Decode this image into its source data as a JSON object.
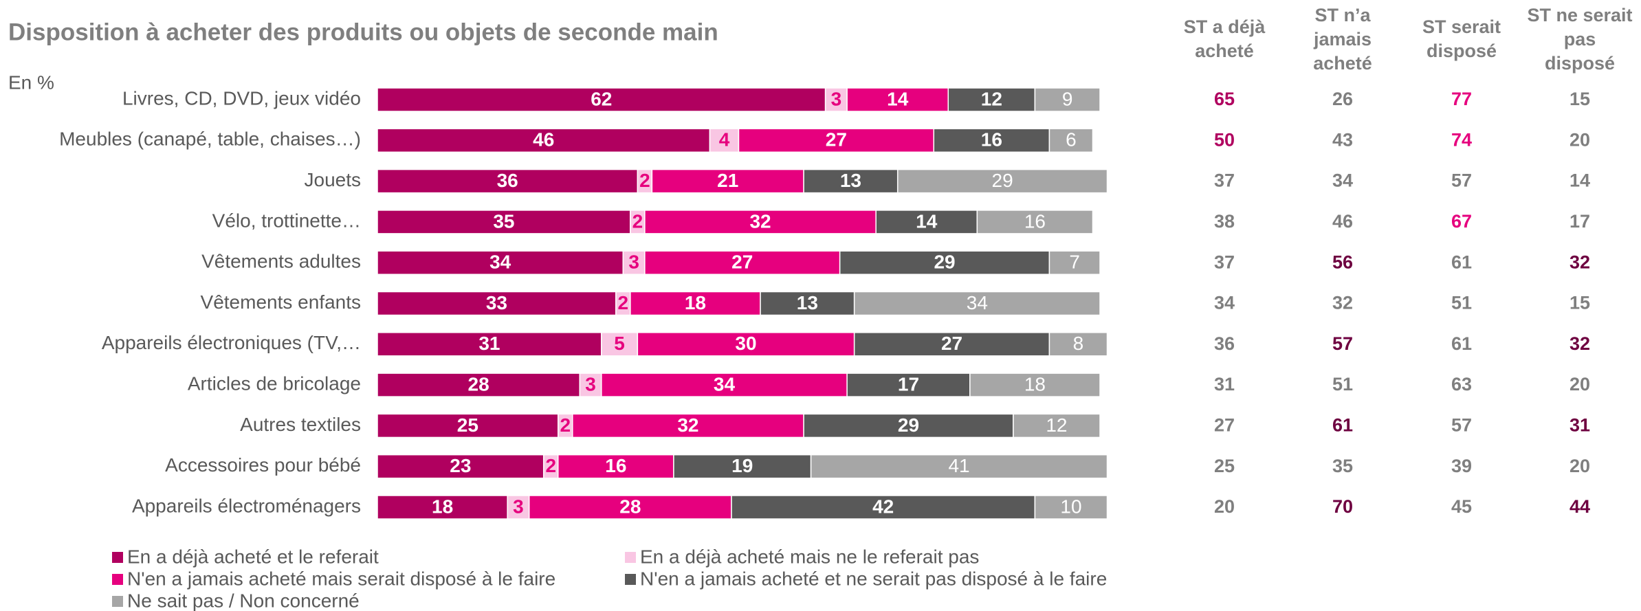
{
  "chart_data": {
    "type": "bar",
    "orientation": "horizontal",
    "stacked": true,
    "title": "Disposition à acheter des produits ou objets de seconde main",
    "unit_label": "En %",
    "xlim": [
      0,
      100
    ],
    "categories": [
      "Livres, CD, DVD, jeux vidéo",
      "Meubles (canapé, table, chaises…)",
      "Jouets",
      "Vélo, trottinette…",
      "Vêtements adultes",
      "Vêtements enfants",
      "Appareils électroniques (TV,…",
      "Articles de bricolage",
      "Autres textiles",
      "Accessoires pour bébé",
      "Appareils électroménagers"
    ],
    "series": [
      {
        "name": "En a déjà acheté et le referait",
        "color": "#b0005f",
        "label_color": "#ffffff",
        "values": [
          62,
          46,
          36,
          35,
          34,
          33,
          31,
          28,
          25,
          23,
          18
        ]
      },
      {
        "name": "En a déjà acheté mais ne le referait pas",
        "color": "#f9c6e3",
        "label_color": "#e6007e",
        "values": [
          3,
          4,
          2,
          2,
          3,
          2,
          5,
          3,
          2,
          2,
          3
        ]
      },
      {
        "name": "N'en a jamais acheté mais serait disposé à le faire",
        "color": "#e6007e",
        "label_color": "#ffffff",
        "values": [
          14,
          27,
          21,
          32,
          27,
          18,
          30,
          34,
          32,
          16,
          28
        ]
      },
      {
        "name": "N'en a jamais acheté et ne serait pas disposé à le faire",
        "color": "#595959",
        "label_color": "#ffffff",
        "values": [
          12,
          16,
          13,
          14,
          29,
          13,
          27,
          17,
          29,
          19,
          42
        ]
      },
      {
        "name": "Ne sait pas / Non concerné",
        "color": "#a6a6a6",
        "label_color": "#ffffff",
        "values": [
          9,
          6,
          29,
          16,
          7,
          34,
          8,
          18,
          12,
          41,
          10
        ]
      }
    ],
    "table": [
      {
        "header": [
          "ST a déjà",
          "acheté"
        ],
        "values": [
          65,
          50,
          37,
          38,
          37,
          34,
          36,
          31,
          27,
          25,
          20
        ],
        "colors": [
          "#b0005f",
          "#b0005f",
          "#7f7f7f",
          "#7f7f7f",
          "#7f7f7f",
          "#7f7f7f",
          "#7f7f7f",
          "#7f7f7f",
          "#7f7f7f",
          "#7f7f7f",
          "#7f7f7f"
        ]
      },
      {
        "header": [
          "ST n’a",
          "jamais",
          "acheté"
        ],
        "values": [
          26,
          43,
          34,
          46,
          56,
          32,
          57,
          51,
          61,
          35,
          70
        ],
        "colors": [
          "#7f7f7f",
          "#7f7f7f",
          "#7f7f7f",
          "#7f7f7f",
          "#6e0040",
          "#7f7f7f",
          "#6e0040",
          "#7f7f7f",
          "#6e0040",
          "#7f7f7f",
          "#6e0040"
        ]
      },
      {
        "header": [
          "ST serait",
          "disposé"
        ],
        "values": [
          77,
          74,
          57,
          67,
          61,
          51,
          61,
          63,
          57,
          39,
          45
        ],
        "colors": [
          "#e6007e",
          "#e6007e",
          "#7f7f7f",
          "#e6007e",
          "#7f7f7f",
          "#7f7f7f",
          "#7f7f7f",
          "#7f7f7f",
          "#7f7f7f",
          "#7f7f7f",
          "#7f7f7f"
        ]
      },
      {
        "header": [
          "ST ne serait",
          "pas",
          "disposé"
        ],
        "values": [
          15,
          20,
          14,
          17,
          32,
          15,
          32,
          20,
          31,
          20,
          44
        ],
        "colors": [
          "#7f7f7f",
          "#7f7f7f",
          "#7f7f7f",
          "#7f7f7f",
          "#6e0040",
          "#7f7f7f",
          "#6e0040",
          "#7f7f7f",
          "#6e0040",
          "#7f7f7f",
          "#6e0040"
        ]
      }
    ]
  }
}
